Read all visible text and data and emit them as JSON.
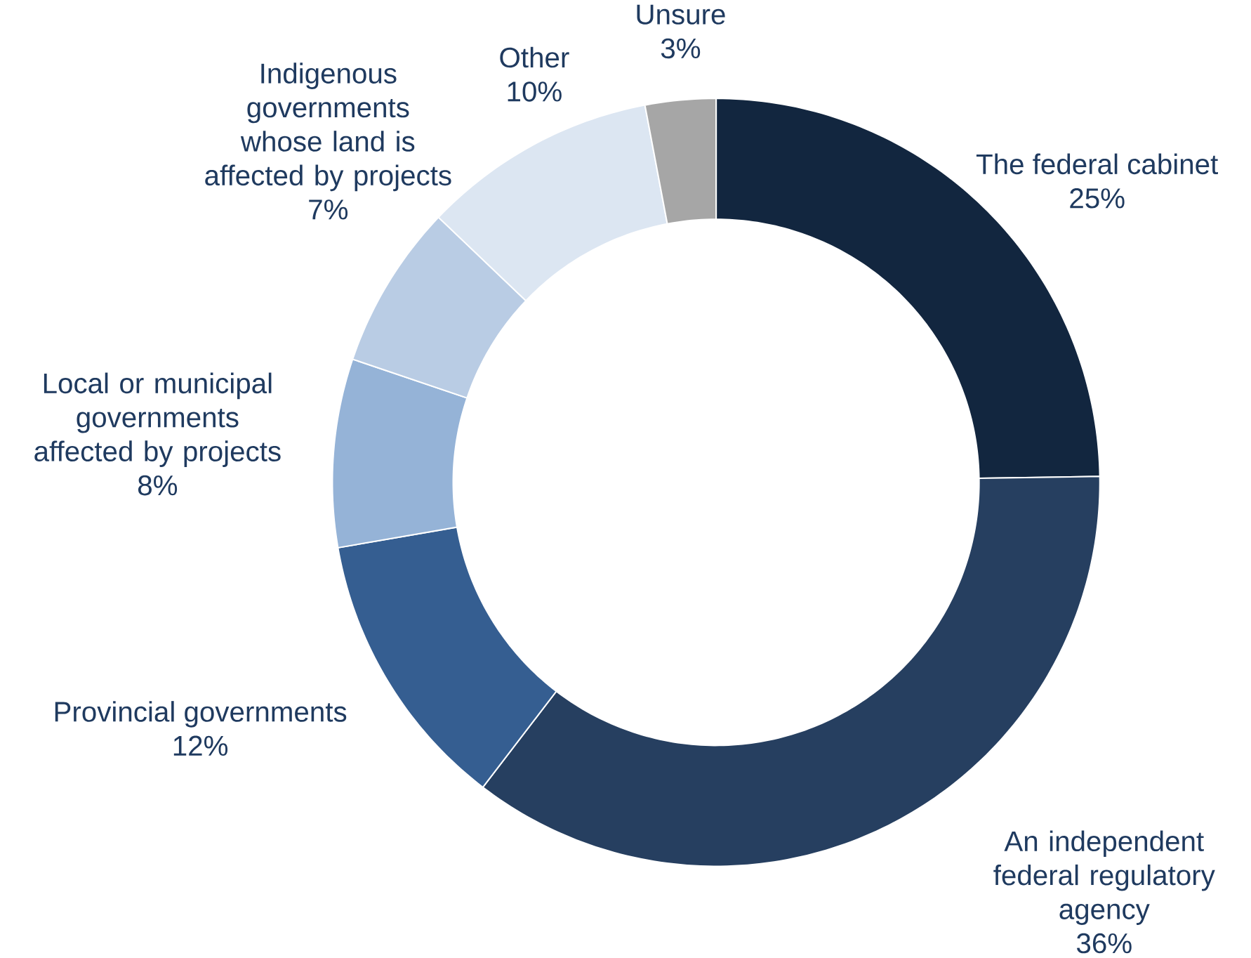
{
  "chart_data": {
    "type": "donut",
    "categories": [
      "The federal cabinet",
      "An independent federal regulatory agency",
      "Provincial governments",
      "Local or municipal governments affected by projects",
      "Indigenous governments whose land is affected by projects",
      "Other",
      "Unsure"
    ],
    "values": [
      25,
      36,
      12,
      8,
      7,
      10,
      3
    ],
    "value_labels": [
      "25%",
      "36%",
      "12%",
      "8%",
      "7%",
      "10%",
      "3%"
    ],
    "colors": [
      "#12263f",
      "#263f60",
      "#355e91",
      "#95b3d7",
      "#b9cce4",
      "#dce6f2",
      "#a6a6a6"
    ]
  }
}
